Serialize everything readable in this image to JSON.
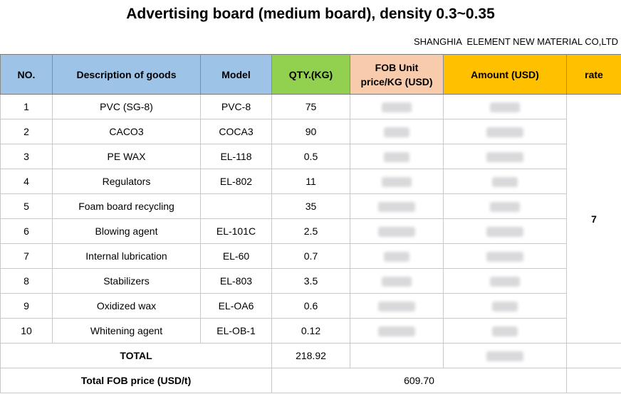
{
  "title": "Advertising board (medium board), density 0.3~0.35",
  "company": "SHANGHIA  ELEMENT NEW MATERIAL CO,LTD",
  "headers": {
    "no": "NO.",
    "description": "Description of goods",
    "model": "Model",
    "qty": "QTY.(KG)",
    "fob_line1": "FOB Unit",
    "fob_line2": "price/KG  (USD)",
    "amount": "Amount  (USD)",
    "rate": "rate"
  },
  "rows": [
    {
      "no": "1",
      "desc": "PVC  (SG-8)",
      "model": "PVC-8",
      "qty": "75"
    },
    {
      "no": "2",
      "desc": "CACO3",
      "model": "COCA3",
      "qty": "90"
    },
    {
      "no": "3",
      "desc": "PE WAX",
      "model": "EL-118",
      "qty": "0.5"
    },
    {
      "no": "4",
      "desc": "Regulators",
      "model": "EL-802",
      "qty": "11"
    },
    {
      "no": "5",
      "desc": "Foam board recycling",
      "model": "",
      "qty": "35"
    },
    {
      "no": "6",
      "desc": "Blowing agent",
      "model": "EL-101C",
      "qty": "2.5"
    },
    {
      "no": "7",
      "desc": "Internal lubrication",
      "model": "EL-60",
      "qty": "0.7"
    },
    {
      "no": "8",
      "desc": "Stabilizers",
      "model": "EL-803",
      "qty": "3.5"
    },
    {
      "no": "9",
      "desc": "Oxidized wax",
      "model": "EL-OA6",
      "qty": "0.6"
    },
    {
      "no": "10",
      "desc": "Whitening agent",
      "model": "EL-OB-1",
      "qty": "0.12"
    }
  ],
  "rate_value": "7",
  "total": {
    "label": "TOTAL",
    "qty": "218.92"
  },
  "fob_total": {
    "label": "Total FOB price (USD/t)",
    "value": "609.70"
  }
}
